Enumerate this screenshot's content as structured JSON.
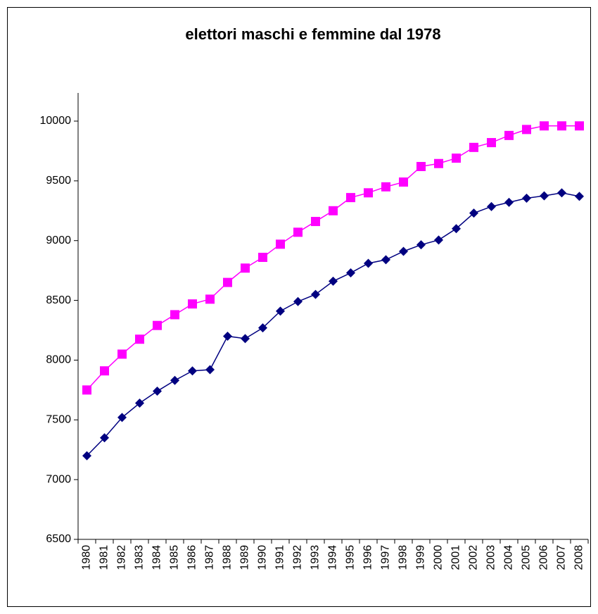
{
  "chart_data": {
    "type": "line",
    "title": "elettori maschi e femmine dal 1978",
    "categories": [
      "1980",
      "1981",
      "1982",
      "1983",
      "1984",
      "1985",
      "1986",
      "1987",
      "1988",
      "1989",
      "1990",
      "1991",
      "1992",
      "1993",
      "1994",
      "1995",
      "1996",
      "1997",
      "1998",
      "1999",
      "2000",
      "2001",
      "2002",
      "2003",
      "2004",
      "2005",
      "2006",
      "2007",
      "2008"
    ],
    "series": [
      {
        "color": "#ff00ff",
        "marker": "square",
        "values": [
          7750,
          7910,
          8050,
          8175,
          8290,
          8380,
          8470,
          8510,
          8650,
          8770,
          8860,
          8970,
          9070,
          9160,
          9250,
          9360,
          9400,
          9450,
          9490,
          9620,
          9645,
          9690,
          9780,
          9820,
          9880,
          9930,
          9960,
          9960,
          9960
        ]
      },
      {
        "color": "#000080",
        "marker": "diamond",
        "values": [
          7200,
          7350,
          7520,
          7640,
          7740,
          7830,
          7910,
          7920,
          8200,
          8180,
          8270,
          8410,
          8490,
          8550,
          8660,
          8730,
          8810,
          8840,
          8910,
          8965,
          9005,
          9100,
          9230,
          9285,
          9320,
          9355,
          9375,
          9400,
          9370
        ]
      }
    ],
    "ylim": [
      6500,
      10000
    ],
    "yticks": [
      6500,
      7000,
      7500,
      8000,
      8500,
      9000,
      9500,
      10000
    ],
    "grid": false
  }
}
